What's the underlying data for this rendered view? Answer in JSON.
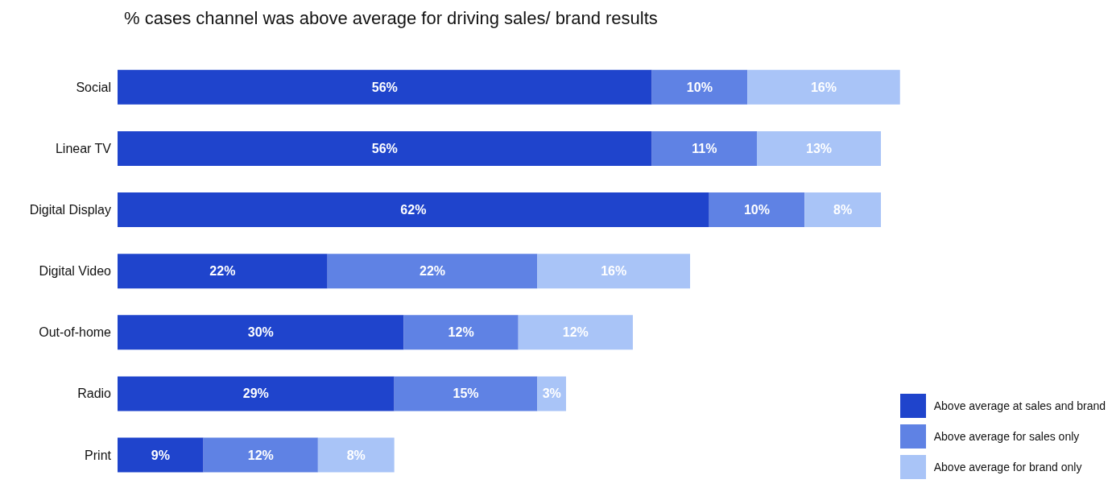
{
  "chart_data": {
    "type": "bar",
    "orientation": "horizontal",
    "stacked": true,
    "title": "% cases channel was above average for driving sales/ brand results",
    "categories": [
      "Social",
      "Linear TV",
      "Digital Display",
      "Digital Video",
      "Out-of-home",
      "Radio",
      "Print"
    ],
    "series": [
      {
        "name": "Above average at sales and brand",
        "color": "#1f44cc",
        "values": [
          56,
          56,
          62,
          22,
          30,
          29,
          9
        ],
        "value_labels": [
          "56%",
          "56%",
          "62%",
          "22%",
          "30%",
          "29%",
          "9%"
        ]
      },
      {
        "name": "Above average for sales only",
        "color": "#5f82e4",
        "values": [
          10,
          11,
          10,
          22,
          12,
          15,
          12
        ],
        "value_labels": [
          "10%",
          "11%",
          "10%",
          "22%",
          "12%",
          "15%",
          "12%"
        ]
      },
      {
        "name": "Above average for brand only",
        "color": "#a9c4f7",
        "values": [
          16,
          13,
          8,
          16,
          12,
          3,
          8
        ],
        "value_labels": [
          "16%",
          "13%",
          "8%",
          "16%",
          "12%",
          "3%",
          "8%"
        ]
      }
    ],
    "legend": "bottom right"
  }
}
